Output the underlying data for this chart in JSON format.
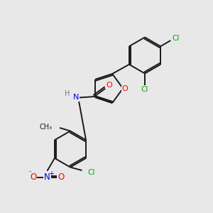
{
  "background_color": "#e8e8e8",
  "bond_color": "#1a1a1a",
  "atom_colors": {
    "O": "#ff0000",
    "N": "#0000ff",
    "Cl": "#00aa00",
    "H": "#777777",
    "C": "#1a1a1a"
  }
}
